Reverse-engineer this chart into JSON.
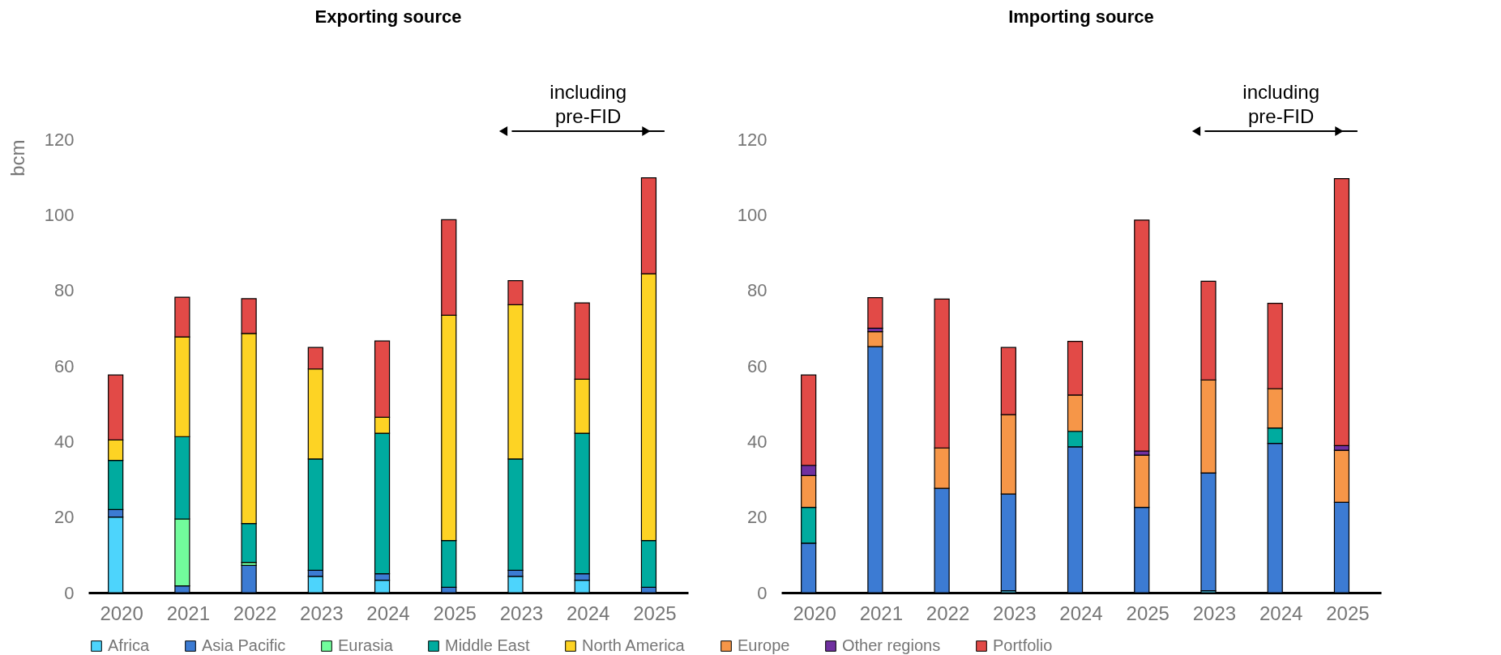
{
  "chart_data": [
    {
      "type": "bar",
      "title": "Exporting source",
      "ylabel": "bcm",
      "stacked": true,
      "legend": "bottom",
      "ylim": [
        0,
        120
      ],
      "yticks": [
        0,
        20,
        40,
        60,
        80,
        100,
        120
      ],
      "categories": [
        "2020",
        "2021",
        "2022",
        "2023",
        "2024",
        "2025",
        "2023",
        "2024",
        "2025"
      ],
      "annotations": [
        "including pre-FID"
      ],
      "series": [
        {
          "name": "Africa",
          "color": "#4dd4fc",
          "values": [
            20,
            null,
            null,
            4.3,
            3.3,
            null,
            4.3,
            3.3,
            null
          ]
        },
        {
          "name": "Asia Pacific",
          "color": "#3c7bd3",
          "values": [
            2,
            1.8,
            7.2,
            1.6,
            1.7,
            1.4,
            1.6,
            1.7,
            1.4
          ]
        },
        {
          "name": "Eurasia",
          "color": "#72fc9c",
          "values": [
            null,
            17.7,
            0.8,
            null,
            null,
            null,
            null,
            null,
            null
          ]
        },
        {
          "name": "Middle East",
          "color": "#00ab9f",
          "values": [
            13,
            21.8,
            10.3,
            29.5,
            37.2,
            12.4,
            29.5,
            37.2,
            12.4
          ]
        },
        {
          "name": "North America",
          "color": "#fdd324",
          "values": [
            5.4,
            26.4,
            50.3,
            23.8,
            4.2,
            59.6,
            40.8,
            14.3,
            70.6
          ]
        },
        {
          "name": "Portfolio",
          "color": "#e24a47",
          "values": [
            17.2,
            10.5,
            9.2,
            5.7,
            20.2,
            25.3,
            6.4,
            20.2,
            25.4
          ]
        }
      ]
    },
    {
      "type": "bar",
      "title": "Importing source",
      "stacked": true,
      "legend": "bottom",
      "ylim": [
        0,
        120
      ],
      "yticks": [
        0,
        20,
        40,
        60,
        80,
        100,
        120
      ],
      "categories": [
        "2020",
        "2021",
        "2022",
        "2023",
        "2024",
        "2025",
        "2023",
        "2024",
        "2025"
      ],
      "annotations": [
        "including pre-FID"
      ],
      "series": [
        {
          "name": "Africa",
          "color": "#4dd4fc",
          "values": [
            null,
            null,
            null,
            0.5,
            null,
            null,
            0.5,
            null,
            null
          ]
        },
        {
          "name": "Asia Pacific",
          "color": "#3c7bd3",
          "values": [
            13.1,
            65.1,
            27.6,
            25.6,
            38.6,
            22.6,
            31.2,
            39.5,
            23.9
          ]
        },
        {
          "name": "Middle East",
          "color": "#00ab9f",
          "values": [
            9.5,
            null,
            null,
            null,
            4.1,
            null,
            null,
            4.1,
            null
          ]
        },
        {
          "name": "Europe",
          "color": "#f69648",
          "values": [
            8.4,
            4,
            10.7,
            21,
            9.6,
            13.8,
            24.6,
            10.4,
            13.8
          ]
        },
        {
          "name": "Other regions",
          "color": "#7030a0",
          "values": [
            2.7,
            0.9,
            null,
            null,
            null,
            1.1,
            null,
            null,
            1.2
          ]
        },
        {
          "name": "Portfolio",
          "color": "#e24a47",
          "values": [
            23.9,
            8.1,
            39.4,
            17.8,
            14.2,
            61.1,
            26.1,
            22.6,
            70.7
          ]
        }
      ]
    }
  ]
}
